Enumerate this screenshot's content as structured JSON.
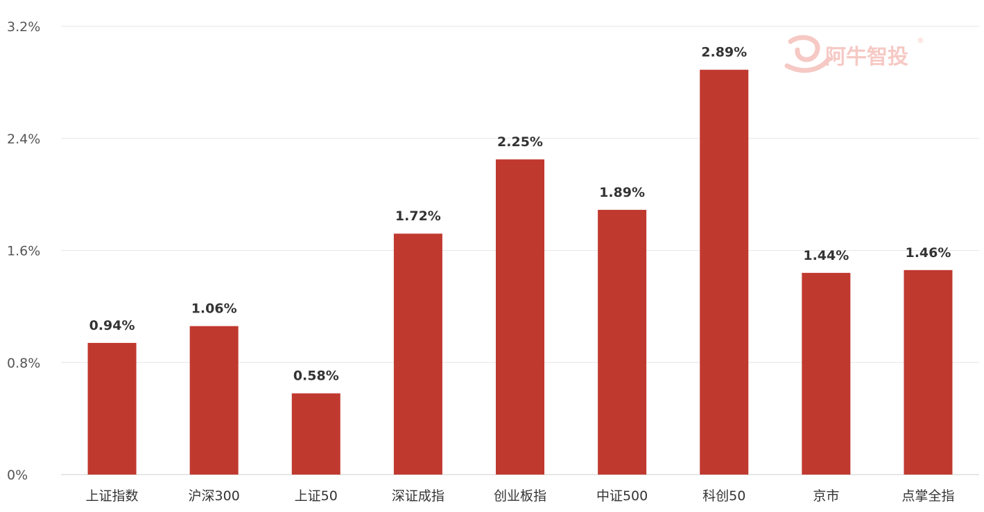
{
  "chart_data": {
    "type": "bar",
    "categories": [
      "上证指数",
      "沪深300",
      "上证50",
      "深证成指",
      "创业板指",
      "中证500",
      "科创50",
      "京市",
      "点掌全指"
    ],
    "values": [
      0.94,
      1.06,
      0.58,
      1.72,
      2.25,
      1.89,
      2.89,
      1.44,
      1.46
    ],
    "value_labels": [
      "0.94%",
      "1.06%",
      "0.58%",
      "1.72%",
      "2.25%",
      "1.89%",
      "2.89%",
      "1.44%",
      "1.46%"
    ],
    "y_ticks": [
      0,
      0.8,
      1.6,
      2.4,
      3.2
    ],
    "y_tick_labels": [
      "0%",
      "0.8%",
      "1.6%",
      "2.4%",
      "3.2%"
    ],
    "ylim": [
      0,
      3.2
    ],
    "grid": true,
    "bar_color": "#c0392f",
    "title": "",
    "xlabel": "",
    "ylabel": ""
  },
  "watermark": {
    "text": "阿牛智投",
    "mark": "®",
    "color": "#f6c9c4"
  }
}
